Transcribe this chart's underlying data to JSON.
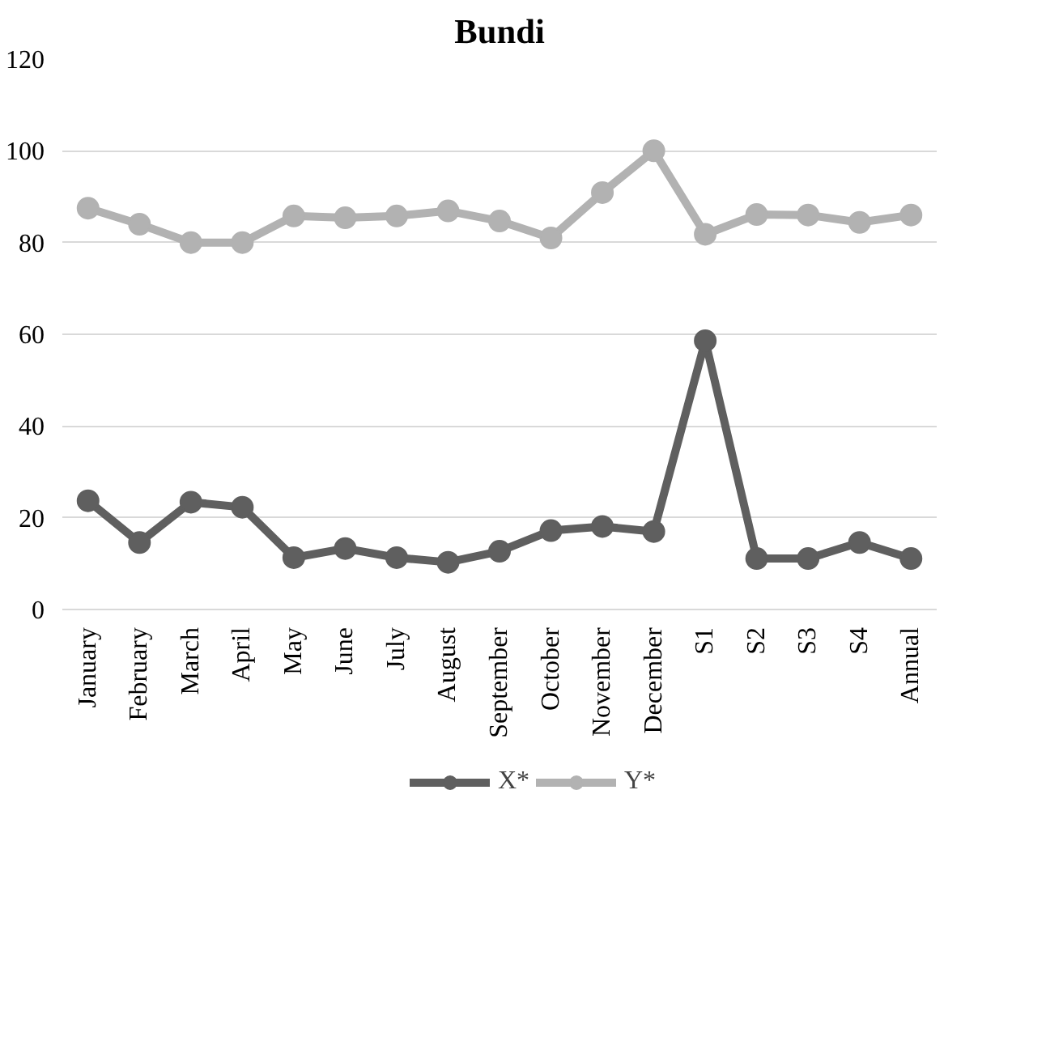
{
  "chart_data": {
    "type": "line",
    "title": "Bundi",
    "categories": [
      "January",
      "February",
      "March",
      "April",
      "May",
      "June",
      "July",
      "August",
      "September",
      "October",
      "November",
      "December",
      "S1",
      "S2",
      "S3",
      "S4",
      "Annual"
    ],
    "series": [
      {
        "name": "X*",
        "color": "#5f5f5f",
        "values": [
          23.7,
          14.6,
          23.4,
          22.3,
          11.3,
          13.3,
          11.3,
          10.3,
          12.7,
          17.2,
          18.1,
          17,
          58.6,
          11.1,
          11.1,
          14.6,
          11.1
        ]
      },
      {
        "name": "Y*",
        "color": "#b2b2b2",
        "values": [
          87.5,
          84,
          80,
          80,
          85.8,
          85.4,
          85.8,
          86.9,
          84.7,
          81,
          90.9,
          100,
          81.8,
          86.1,
          86,
          84.4,
          86
        ]
      }
    ],
    "ylim": [
      0,
      120
    ],
    "yticks": [
      0,
      20,
      40,
      60,
      80,
      100,
      120
    ],
    "grid": "y",
    "legend": "bottom",
    "marker": "circle",
    "line_style": "solid"
  }
}
